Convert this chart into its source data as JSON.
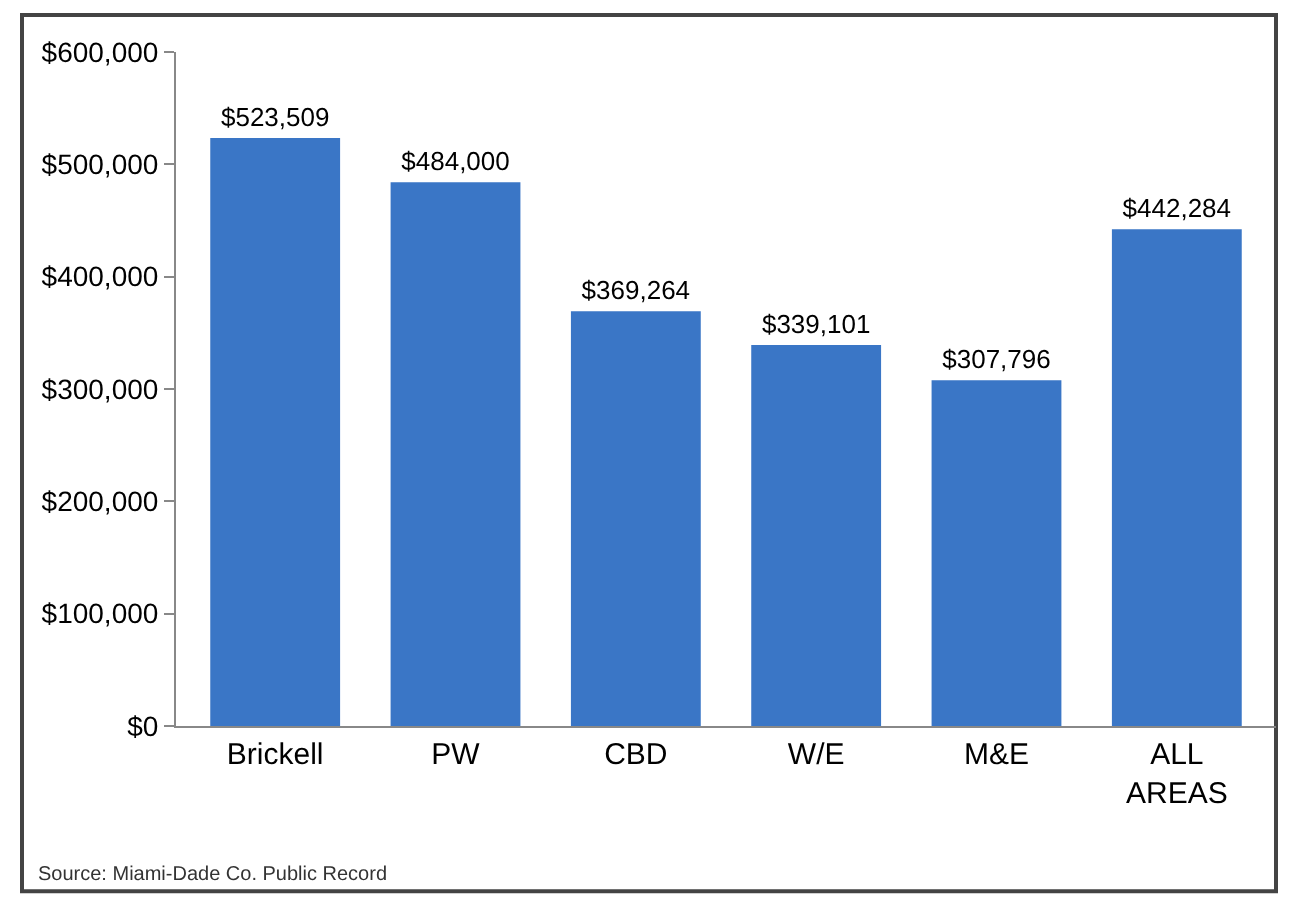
{
  "chart_data": {
    "type": "bar",
    "categories": [
      "Brickell",
      "PW",
      "CBD",
      "W/E",
      "M&E",
      "ALL AREAS"
    ],
    "values": [
      523509,
      484000,
      369264,
      339101,
      307796,
      442284
    ],
    "value_labels": [
      "$523,509",
      "$484,000",
      "$369,264",
      "$339,101",
      "$307,796",
      "$442,284"
    ],
    "color": "#3a76c6",
    "ylim": [
      0,
      600000
    ],
    "yticks": [
      {
        "value": 0,
        "label": "$0"
      },
      {
        "value": 100000,
        "label": "$100,000"
      },
      {
        "value": 200000,
        "label": "$200,000"
      },
      {
        "value": 300000,
        "label": "$300,000"
      },
      {
        "value": 400000,
        "label": "$400,000"
      },
      {
        "value": 500000,
        "label": "$500,000"
      },
      {
        "value": 600000,
        "label": "$600,000"
      }
    ],
    "grid": false,
    "legend": false,
    "annotations": [
      "Source: Miami-Dade Co. Public Record"
    ]
  }
}
